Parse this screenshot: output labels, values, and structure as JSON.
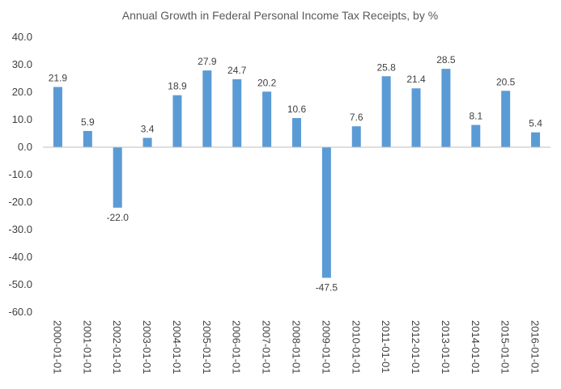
{
  "chart_data": {
    "type": "bar",
    "title": "Annual Growth in Federal Personal Income Tax Receipts, by %",
    "xlabel": "",
    "ylabel": "",
    "categories": [
      "2000-01-01",
      "2001-01-01",
      "2002-01-01",
      "2003-01-01",
      "2004-01-01",
      "2005-01-01",
      "2006-01-01",
      "2007-01-01",
      "2008-01-01",
      "2009-01-01",
      "2010-01-01",
      "2011-01-01",
      "2012-01-01",
      "2013-01-01",
      "2014-01-01",
      "2015-01-01",
      "2016-01-01"
    ],
    "values": [
      21.9,
      5.9,
      -22.0,
      3.4,
      18.9,
      27.9,
      24.7,
      20.2,
      10.6,
      -47.5,
      7.6,
      25.8,
      21.4,
      28.5,
      8.1,
      20.5,
      5.4
    ],
    "ylim": [
      -60,
      40
    ],
    "yticks": [
      40,
      30,
      20,
      10,
      0,
      -10,
      -20,
      -30,
      -40,
      -50,
      -60
    ],
    "ytick_labels": [
      "40.0",
      "30.0",
      "20.0",
      "10.0",
      "0.0",
      "-10.0",
      "-20.0",
      "-30.0",
      "-40.0",
      "-50.0",
      "-60.0"
    ],
    "data_labels": [
      "21.9",
      "5.9",
      "-22.0",
      "3.4",
      "18.9",
      "27.9",
      "24.7",
      "20.2",
      "10.6",
      "-47.5",
      "7.6",
      "25.8",
      "21.4",
      "28.5",
      "8.1",
      "20.5",
      "5.4"
    ],
    "grid": false,
    "legend": "none",
    "bar_color": "#5B9BD5",
    "axis_color": "#BFBFBF"
  }
}
